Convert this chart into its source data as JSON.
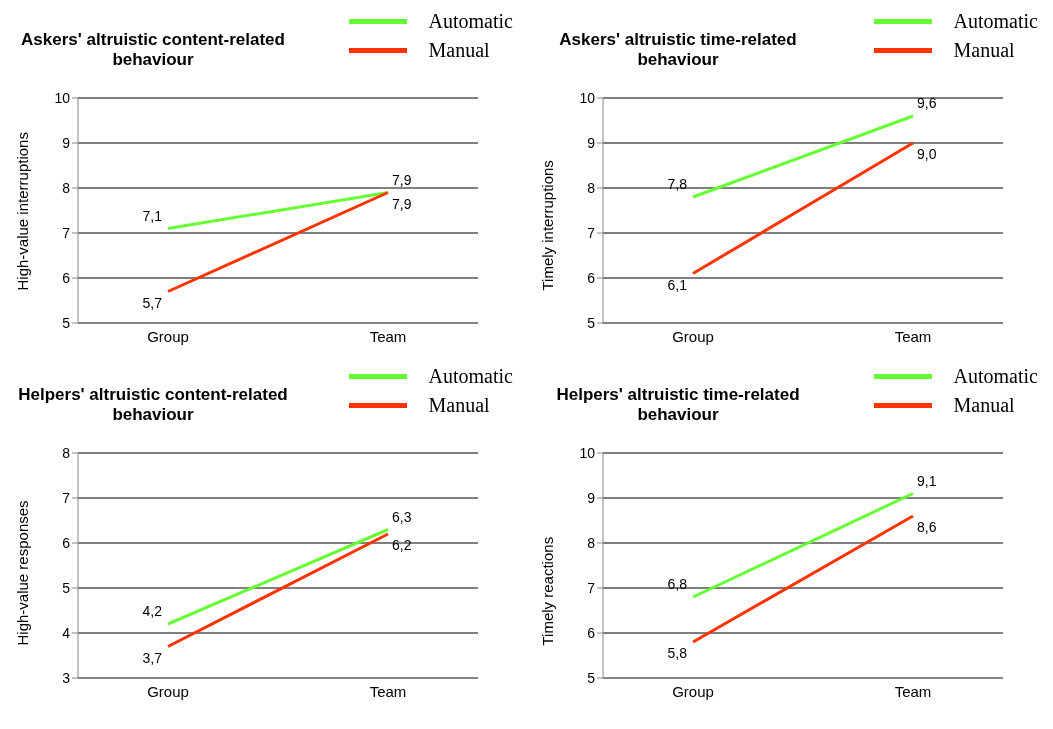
{
  "chart_data": [
    {
      "type": "line",
      "title": "Askers' altruistic content-related behaviour",
      "ylabel": "High-value interruptions",
      "categories": [
        "Group",
        "Team"
      ],
      "ylim": [
        5,
        10
      ],
      "yticks": [
        5,
        6,
        7,
        8,
        9,
        10
      ],
      "grid": "y",
      "legend": "top right",
      "marker": "none",
      "line_style": "solid",
      "data_labels": true,
      "series": [
        {
          "name": "Automatic",
          "color": "#66ff33",
          "values": [
            7.1,
            7.9
          ],
          "value_labels": [
            "7,1",
            "7,9"
          ]
        },
        {
          "name": "Manual",
          "color": "#ff3300",
          "values": [
            5.7,
            7.9
          ],
          "value_labels": [
            "5,7",
            "7,9"
          ]
        }
      ]
    },
    {
      "type": "line",
      "title": "Askers' altruistic time-related behaviour",
      "ylabel": "Timely interruptions",
      "categories": [
        "Group",
        "Team"
      ],
      "ylim": [
        5,
        10
      ],
      "yticks": [
        5,
        6,
        7,
        8,
        9,
        10
      ],
      "grid": "y",
      "legend": "top right",
      "marker": "none",
      "line_style": "solid",
      "data_labels": true,
      "series": [
        {
          "name": "Automatic",
          "color": "#66ff33",
          "values": [
            7.8,
            9.6
          ],
          "value_labels": [
            "7,8",
            "9,6"
          ]
        },
        {
          "name": "Manual",
          "color": "#ff3300",
          "values": [
            6.1,
            9.0
          ],
          "value_labels": [
            "6,1",
            "9,0"
          ]
        }
      ]
    },
    {
      "type": "line",
      "title": "Helpers' altruistic content-related behaviour",
      "ylabel": "High-value responses",
      "categories": [
        "Group",
        "Team"
      ],
      "ylim": [
        3,
        8
      ],
      "yticks": [
        3,
        4,
        5,
        6,
        7,
        8
      ],
      "grid": "y",
      "legend": "top right",
      "marker": "none",
      "line_style": "solid",
      "data_labels": true,
      "series": [
        {
          "name": "Automatic",
          "color": "#66ff33",
          "values": [
            4.2,
            6.3
          ],
          "value_labels": [
            "4,2",
            "6,3"
          ]
        },
        {
          "name": "Manual",
          "color": "#ff3300",
          "values": [
            3.7,
            6.2
          ],
          "value_labels": [
            "3,7",
            "6,2"
          ]
        }
      ]
    },
    {
      "type": "line",
      "title": "Helpers' altruistic time-related behaviour",
      "ylabel": "Timely reactions",
      "categories": [
        "Group",
        "Team"
      ],
      "ylim": [
        5,
        10
      ],
      "yticks": [
        5,
        6,
        7,
        8,
        9,
        10
      ],
      "grid": "y",
      "legend": "top right",
      "marker": "none",
      "line_style": "solid",
      "data_labels": true,
      "series": [
        {
          "name": "Automatic",
          "color": "#66ff33",
          "values": [
            6.8,
            9.1
          ],
          "value_labels": [
            "6,8",
            "9,1"
          ]
        },
        {
          "name": "Manual",
          "color": "#ff3300",
          "values": [
            5.8,
            8.6
          ],
          "value_labels": [
            "5,8",
            "8,6"
          ]
        }
      ]
    }
  ]
}
